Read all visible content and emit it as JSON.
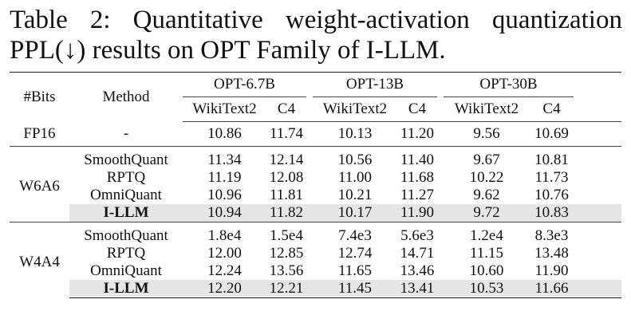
{
  "caption": {
    "line1_words": [
      "Table",
      "2:",
      "Quantitative",
      "weight-activation",
      "quantization"
    ],
    "line2": "PPL(↓) results on OPT Family of I-LLM."
  },
  "header": {
    "bits": "#Bits",
    "method": "Method",
    "models": [
      "OPT-6.7B",
      "OPT-13B",
      "OPT-30B"
    ],
    "datasets": [
      "WikiText2",
      "C4",
      "WikiText2",
      "C4",
      "WikiText2",
      "C4"
    ]
  },
  "fp16": {
    "bits": "FP16",
    "method": "-",
    "values": [
      "10.86",
      "11.74",
      "10.13",
      "11.20",
      "9.56",
      "10.69"
    ]
  },
  "w6a6": {
    "bits": "W6A6",
    "rows": [
      {
        "method": "SmoothQuant",
        "values": [
          "11.34",
          "12.14",
          "10.56",
          "11.40",
          "9.67",
          "10.81"
        ]
      },
      {
        "method": "RPTQ",
        "values": [
          "11.19",
          "12.08",
          "11.00",
          "11.68",
          "10.22",
          "11.73"
        ]
      },
      {
        "method": "OmniQuant",
        "values": [
          "10.96",
          "11.81",
          "10.21",
          "11.27",
          "9.62",
          "10.76"
        ]
      },
      {
        "method": "I-LLM",
        "values": [
          "10.94",
          "11.82",
          "10.17",
          "11.90",
          "9.72",
          "10.83"
        ]
      }
    ]
  },
  "w4a4": {
    "bits": "W4A4",
    "rows": [
      {
        "method": "SmoothQuant",
        "values": [
          "1.8e4",
          "1.5e4",
          "7.4e3",
          "5.6e3",
          "1.2e4",
          "8.3e3"
        ]
      },
      {
        "method": "RPTQ",
        "values": [
          "12.00",
          "12.85",
          "12.74",
          "14.71",
          "11.15",
          "13.48"
        ]
      },
      {
        "method": "OmniQuant",
        "values": [
          "12.24",
          "13.56",
          "11.65",
          "13.46",
          "10.60",
          "11.90"
        ]
      },
      {
        "method": "I-LLM",
        "values": [
          "12.20",
          "12.21",
          "11.45",
          "13.41",
          "10.53",
          "11.66"
        ]
      }
    ]
  }
}
